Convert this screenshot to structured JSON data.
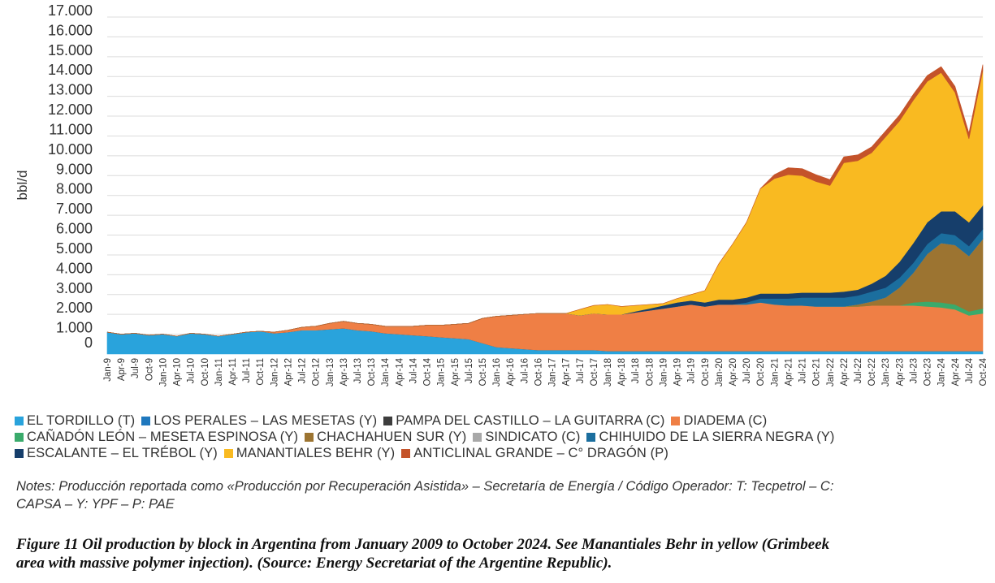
{
  "chart_data": {
    "type": "area",
    "stacked": true,
    "ylabel": "bbl/d",
    "ylim": [
      0,
      17000
    ],
    "y_ticks": [
      "0",
      "1.000",
      "2.000",
      "3.000",
      "4.000",
      "5.000",
      "6.000",
      "7.000",
      "8.000",
      "9.000",
      "10.000",
      "11.000",
      "12.000",
      "13.000",
      "14.000",
      "15.000",
      "16.000",
      "17.000"
    ],
    "grid": true,
    "legend_position": "bottom",
    "x_tick_labels": [
      "Jan-9",
      "Apr-9",
      "Jul-9",
      "Oct-9",
      "Jan-10",
      "Apr-10",
      "Jul-10",
      "Oct-10",
      "Jan-11",
      "Apr-11",
      "Jul-11",
      "Oct-11",
      "Jan-12",
      "Apr-12",
      "Jul-12",
      "Oct-12",
      "Jan-13",
      "Apr-13",
      "Jul-13",
      "Oct-13",
      "Jan-14",
      "Apr-14",
      "Jul-14",
      "Oct-14",
      "Jan-15",
      "Apr-15",
      "Jul-15",
      "Oct-15",
      "Jan-16",
      "Apr-16",
      "Jul-16",
      "Oct-16",
      "Jan-17",
      "Apr-17",
      "Jul-17",
      "Oct-17",
      "Jan-18",
      "Apr-18",
      "Jul-18",
      "Oct-18",
      "Jan-19",
      "Apr-19",
      "Jul-19",
      "Oct-19",
      "Jan-20",
      "Apr-20",
      "Jul-20",
      "Oct-20",
      "Jan-21",
      "Apr-21",
      "Jul-21",
      "Oct-21",
      "Jan-22",
      "Apr-22",
      "Jul-22",
      "Oct-22",
      "Jan-23",
      "Apr-23",
      "Jul-23",
      "Oct-23",
      "Jan-24",
      "Apr-24",
      "Jul-24",
      "Oct-24"
    ],
    "series": [
      {
        "name": "EL TORDILLO (T)",
        "color": "#29A3DC",
        "values": [
          1100,
          1000,
          1050,
          950,
          1000,
          900,
          1050,
          1000,
          900,
          1000,
          1100,
          1150,
          1050,
          1100,
          1200,
          1200,
          1250,
          1300,
          1200,
          1150,
          1050,
          1000,
          950,
          900,
          850,
          800,
          750,
          550,
          350,
          300,
          250,
          200,
          200,
          200,
          200,
          200,
          150,
          150,
          150,
          150,
          150,
          150,
          150,
          150,
          150,
          150,
          150,
          150,
          150,
          150,
          150,
          150,
          150,
          150,
          150,
          150,
          150,
          150,
          150,
          150,
          150,
          150,
          150,
          150
        ]
      },
      {
        "name": "LOS PERALES – LAS MESETAS (Y)",
        "color": "#1F78BE",
        "values": [
          0,
          0,
          0,
          0,
          0,
          0,
          0,
          0,
          0,
          0,
          0,
          0,
          0,
          0,
          0,
          0,
          0,
          0,
          0,
          0,
          0,
          0,
          0,
          0,
          0,
          0,
          0,
          0,
          0,
          0,
          0,
          0,
          0,
          0,
          0,
          0,
          0,
          0,
          0,
          0,
          0,
          0,
          0,
          0,
          0,
          0,
          0,
          0,
          0,
          0,
          0,
          0,
          0,
          0,
          0,
          0,
          0,
          0,
          0,
          0,
          0,
          0,
          0,
          0
        ]
      },
      {
        "name": "PAMPA DEL CASTILLO – LA GUITARRA (C)",
        "color": "#3D3D3D",
        "values": [
          0,
          0,
          0,
          0,
          0,
          0,
          0,
          0,
          0,
          0,
          0,
          0,
          0,
          0,
          0,
          0,
          0,
          0,
          0,
          0,
          0,
          0,
          0,
          0,
          0,
          0,
          0,
          0,
          0,
          0,
          0,
          0,
          0,
          0,
          0,
          0,
          0,
          0,
          0,
          0,
          0,
          0,
          0,
          0,
          0,
          0,
          0,
          0,
          0,
          0,
          0,
          0,
          0,
          0,
          0,
          0,
          0,
          0,
          0,
          0,
          0,
          0,
          0,
          0
        ]
      },
      {
        "name": "DIADEMA (C)",
        "color": "#EF7F45",
        "values": [
          0,
          0,
          0,
          0,
          0,
          0,
          0,
          0,
          0,
          0,
          0,
          0,
          50,
          100,
          150,
          200,
          300,
          350,
          350,
          350,
          350,
          400,
          450,
          550,
          600,
          700,
          800,
          1250,
          1550,
          1650,
          1750,
          1850,
          1850,
          1850,
          1750,
          1850,
          1850,
          1850,
          1950,
          2050,
          2150,
          2250,
          2350,
          2250,
          2350,
          2350,
          2350,
          2450,
          2350,
          2300,
          2300,
          2250,
          2250,
          2250,
          2250,
          2300,
          2300,
          2300,
          2300,
          2250,
          2200,
          2100,
          1800,
          1900
        ]
      },
      {
        "name": "CAÑADÓN LEÓN – MESETA ESPINOSA (Y)",
        "color": "#3AAA6B",
        "values": [
          0,
          0,
          0,
          0,
          0,
          0,
          0,
          0,
          0,
          0,
          0,
          0,
          0,
          0,
          0,
          0,
          0,
          0,
          0,
          0,
          0,
          0,
          0,
          0,
          0,
          0,
          0,
          0,
          0,
          0,
          0,
          0,
          0,
          0,
          0,
          0,
          0,
          0,
          0,
          0,
          0,
          0,
          0,
          0,
          0,
          0,
          0,
          0,
          0,
          0,
          0,
          0,
          0,
          0,
          0,
          0,
          0,
          0,
          150,
          250,
          250,
          250,
          200,
          250
        ]
      },
      {
        "name": "CHACHAHUEN SUR (Y)",
        "color": "#9C7431",
        "values": [
          0,
          0,
          0,
          0,
          0,
          0,
          0,
          0,
          0,
          0,
          0,
          0,
          0,
          0,
          0,
          0,
          0,
          0,
          0,
          0,
          0,
          0,
          0,
          0,
          0,
          0,
          0,
          0,
          0,
          0,
          0,
          0,
          0,
          0,
          0,
          0,
          0,
          0,
          0,
          0,
          0,
          0,
          0,
          0,
          0,
          0,
          0,
          0,
          0,
          0,
          0,
          0,
          0,
          0,
          100,
          200,
          400,
          900,
          1500,
          2400,
          3000,
          3000,
          2800,
          3500
        ]
      },
      {
        "name": "SINDICATO (C)",
        "color": "#A8A8A8",
        "values": [
          0,
          0,
          0,
          0,
          0,
          0,
          0,
          0,
          0,
          0,
          0,
          0,
          0,
          0,
          0,
          0,
          0,
          0,
          0,
          0,
          0,
          0,
          0,
          0,
          0,
          0,
          0,
          0,
          0,
          0,
          0,
          0,
          0,
          0,
          0,
          0,
          0,
          0,
          0,
          0,
          0,
          0,
          0,
          0,
          0,
          0,
          0,
          0,
          0,
          0,
          0,
          0,
          0,
          0,
          0,
          0,
          0,
          0,
          0,
          0,
          0,
          0,
          0,
          0
        ]
      },
      {
        "name": "CHIHUIDO DE LA SIERRA NEGRA (Y)",
        "color": "#1B6E9E",
        "values": [
          0,
          0,
          0,
          0,
          0,
          0,
          0,
          0,
          0,
          0,
          0,
          0,
          0,
          0,
          0,
          0,
          0,
          0,
          0,
          0,
          0,
          0,
          0,
          0,
          0,
          0,
          0,
          0,
          0,
          0,
          0,
          0,
          0,
          0,
          0,
          0,
          0,
          0,
          0,
          0,
          0,
          0,
          0,
          0,
          0,
          0,
          100,
          200,
          300,
          350,
          400,
          450,
          450,
          450,
          450,
          500,
          500,
          500,
          500,
          500,
          500,
          500,
          500,
          500
        ]
      },
      {
        "name": "ESCALANTE – EL TRÉBOL (Y)",
        "color": "#163E6B",
        "values": [
          0,
          0,
          0,
          0,
          0,
          0,
          0,
          0,
          0,
          0,
          0,
          0,
          0,
          0,
          0,
          0,
          0,
          0,
          0,
          0,
          0,
          0,
          0,
          0,
          0,
          0,
          0,
          0,
          0,
          0,
          0,
          0,
          0,
          0,
          0,
          0,
          0,
          0,
          50,
          100,
          150,
          200,
          200,
          200,
          250,
          250,
          250,
          250,
          250,
          250,
          250,
          250,
          250,
          300,
          300,
          400,
          600,
          800,
          1000,
          1100,
          1100,
          1200,
          1200,
          1200
        ]
      },
      {
        "name": "MANANTIALES BEHR (Y)",
        "color": "#F9BA21",
        "values": [
          0,
          0,
          0,
          0,
          0,
          0,
          0,
          0,
          0,
          0,
          0,
          0,
          0,
          0,
          0,
          0,
          0,
          0,
          0,
          0,
          0,
          0,
          0,
          0,
          0,
          0,
          0,
          0,
          0,
          0,
          0,
          0,
          0,
          0,
          300,
          400,
          500,
          400,
          300,
          200,
          100,
          200,
          300,
          600,
          1800,
          2800,
          3800,
          5300,
          5800,
          6000,
          5900,
          5600,
          5400,
          6500,
          6500,
          6600,
          7000,
          7100,
          7200,
          7100,
          7000,
          6000,
          4200,
          6800
        ]
      },
      {
        "name": "ANTICLINAL GRANDE – C° DRAGÓN (P)",
        "color": "#C4532A",
        "values": [
          0,
          0,
          0,
          0,
          0,
          0,
          0,
          0,
          0,
          0,
          0,
          0,
          0,
          0,
          0,
          0,
          0,
          0,
          0,
          0,
          0,
          0,
          0,
          0,
          0,
          0,
          0,
          0,
          0,
          0,
          0,
          0,
          0,
          0,
          0,
          0,
          0,
          0,
          0,
          0,
          0,
          0,
          0,
          0,
          0,
          0,
          0,
          0,
          200,
          350,
          350,
          350,
          300,
          300,
          300,
          300,
          300,
          300,
          300,
          300,
          300,
          300,
          300,
          300
        ]
      }
    ]
  },
  "legend_rows": [
    [
      {
        "label": "EL TORDILLO (T)",
        "color": "#29A3DC"
      },
      {
        "label": "LOS PERALES – LAS MESETAS (Y)",
        "color": "#1F78BE"
      },
      {
        "label": "PAMPA DEL CASTILLO – LA GUITARRA (C)",
        "color": "#3D3D3D"
      },
      {
        "label": "DIADEMA (C)",
        "color": "#EF7F45"
      }
    ],
    [
      {
        "label": "CAÑADÓN LEÓN – MESETA ESPINOSA (Y)",
        "color": "#3AAA6B"
      },
      {
        "label": "CHACHAHUEN SUR (Y)",
        "color": "#9C7431"
      },
      {
        "label": "SINDICATO (C)",
        "color": "#A8A8A8"
      },
      {
        "label": "CHIHUIDO DE LA SIERRA NEGRA (Y)",
        "color": "#1B6E9E"
      }
    ],
    [
      {
        "label": "ESCALANTE – EL TRÉBOL (Y)",
        "color": "#163E6B"
      },
      {
        "label": "MANANTIALES BEHR (Y)",
        "color": "#F9BA21"
      },
      {
        "label": "ANTICLINAL GRANDE – C° DRAGÓN (P)",
        "color": "#C4532A"
      }
    ]
  ],
  "notes": {
    "line1": "Notes: Producción reportada como «Producción por Recuperación Asistida» – Secretaría de Energía / Código Operador: T: Tecpetrol – C:",
    "line2": "CAPSA – Y: YPF – P: PAE"
  },
  "caption": {
    "line1": "Figure 11 Oil production by block in Argentina from January 2009 to October 2024. See Manantiales Behr in yellow (Grimbeek",
    "line2": "area with massive polymer injection). (Source: Energy Secretariat of the Argentine Republic)."
  }
}
